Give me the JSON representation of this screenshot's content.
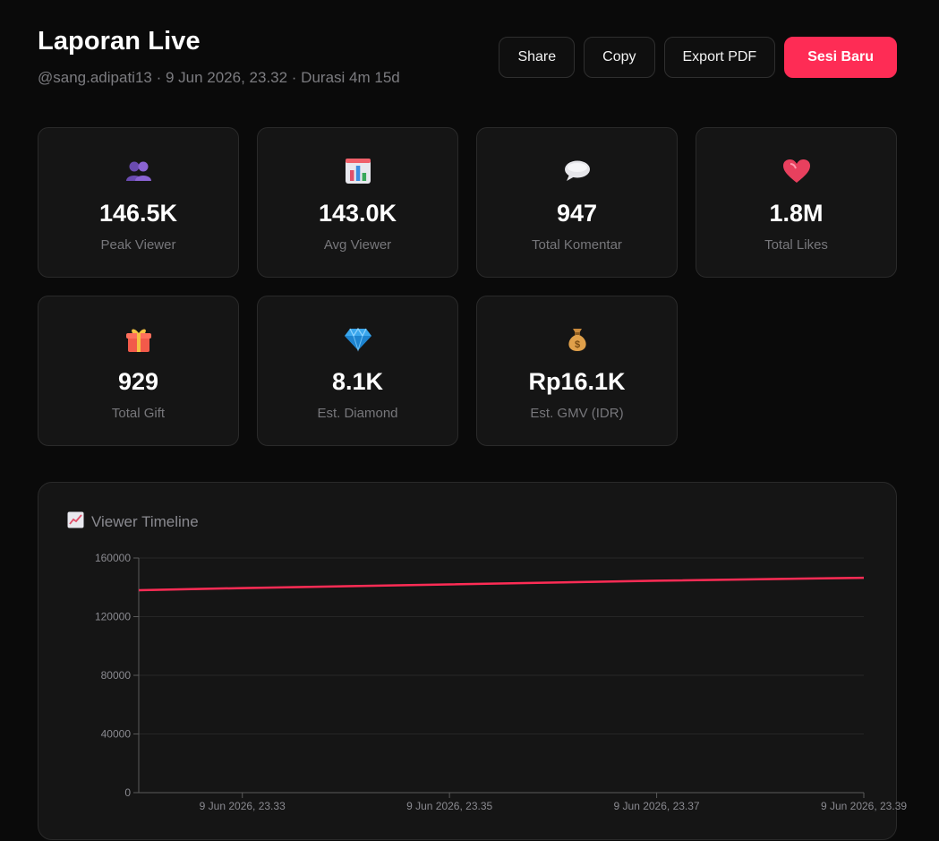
{
  "header": {
    "title": "Laporan Live",
    "subtitle": "@sang.adipati13 · 9 Jun 2026, 23.32 · Durasi 4m 15d"
  },
  "actions": {
    "share": "Share",
    "copy": "Copy",
    "export_pdf": "Export PDF",
    "new_session": "Sesi Baru"
  },
  "colors": {
    "accent": "#fe2c55",
    "card_bg": "#151515",
    "page_bg": "#0a0a0a"
  },
  "stats": [
    {
      "icon": "people-icon",
      "value": "146.5K",
      "label": "Peak Viewer"
    },
    {
      "icon": "bar-chart-icon",
      "value": "143.0K",
      "label": "Avg Viewer"
    },
    {
      "icon": "speech-bubble-icon",
      "value": "947",
      "label": "Total Komentar"
    },
    {
      "icon": "heart-icon",
      "value": "1.8M",
      "label": "Total Likes"
    },
    {
      "icon": "gift-icon",
      "value": "929",
      "label": "Total Gift"
    },
    {
      "icon": "diamond-icon",
      "value": "8.1K",
      "label": "Est. Diamond"
    },
    {
      "icon": "money-bag-icon",
      "value": "Rp16.1K",
      "label": "Est. GMV (IDR)"
    }
  ],
  "chart": {
    "title": "Viewer Timeline",
    "icon": "trend-chart-icon"
  },
  "chart_data": {
    "type": "line",
    "x_ticks": [
      "9 Jun 2026, 23.33",
      "9 Jun 2026, 23.35",
      "9 Jun 2026, 23.37",
      "9 Jun 2026, 23.39"
    ],
    "y_ticks": [
      0,
      40000,
      80000,
      120000,
      160000
    ],
    "ylim": [
      0,
      160000
    ],
    "series": [
      {
        "color": "#fe2c55",
        "points": [
          {
            "x": "9 Jun 2026, 23.32",
            "y": 138000
          },
          {
            "x": "9 Jun 2026, 23.33",
            "y": 139500
          },
          {
            "x": "9 Jun 2026, 23.35",
            "y": 142000
          },
          {
            "x": "9 Jun 2026, 23.37",
            "y": 144500
          },
          {
            "x": "9 Jun 2026, 23.39",
            "y": 146500
          }
        ]
      }
    ],
    "grid": true
  }
}
